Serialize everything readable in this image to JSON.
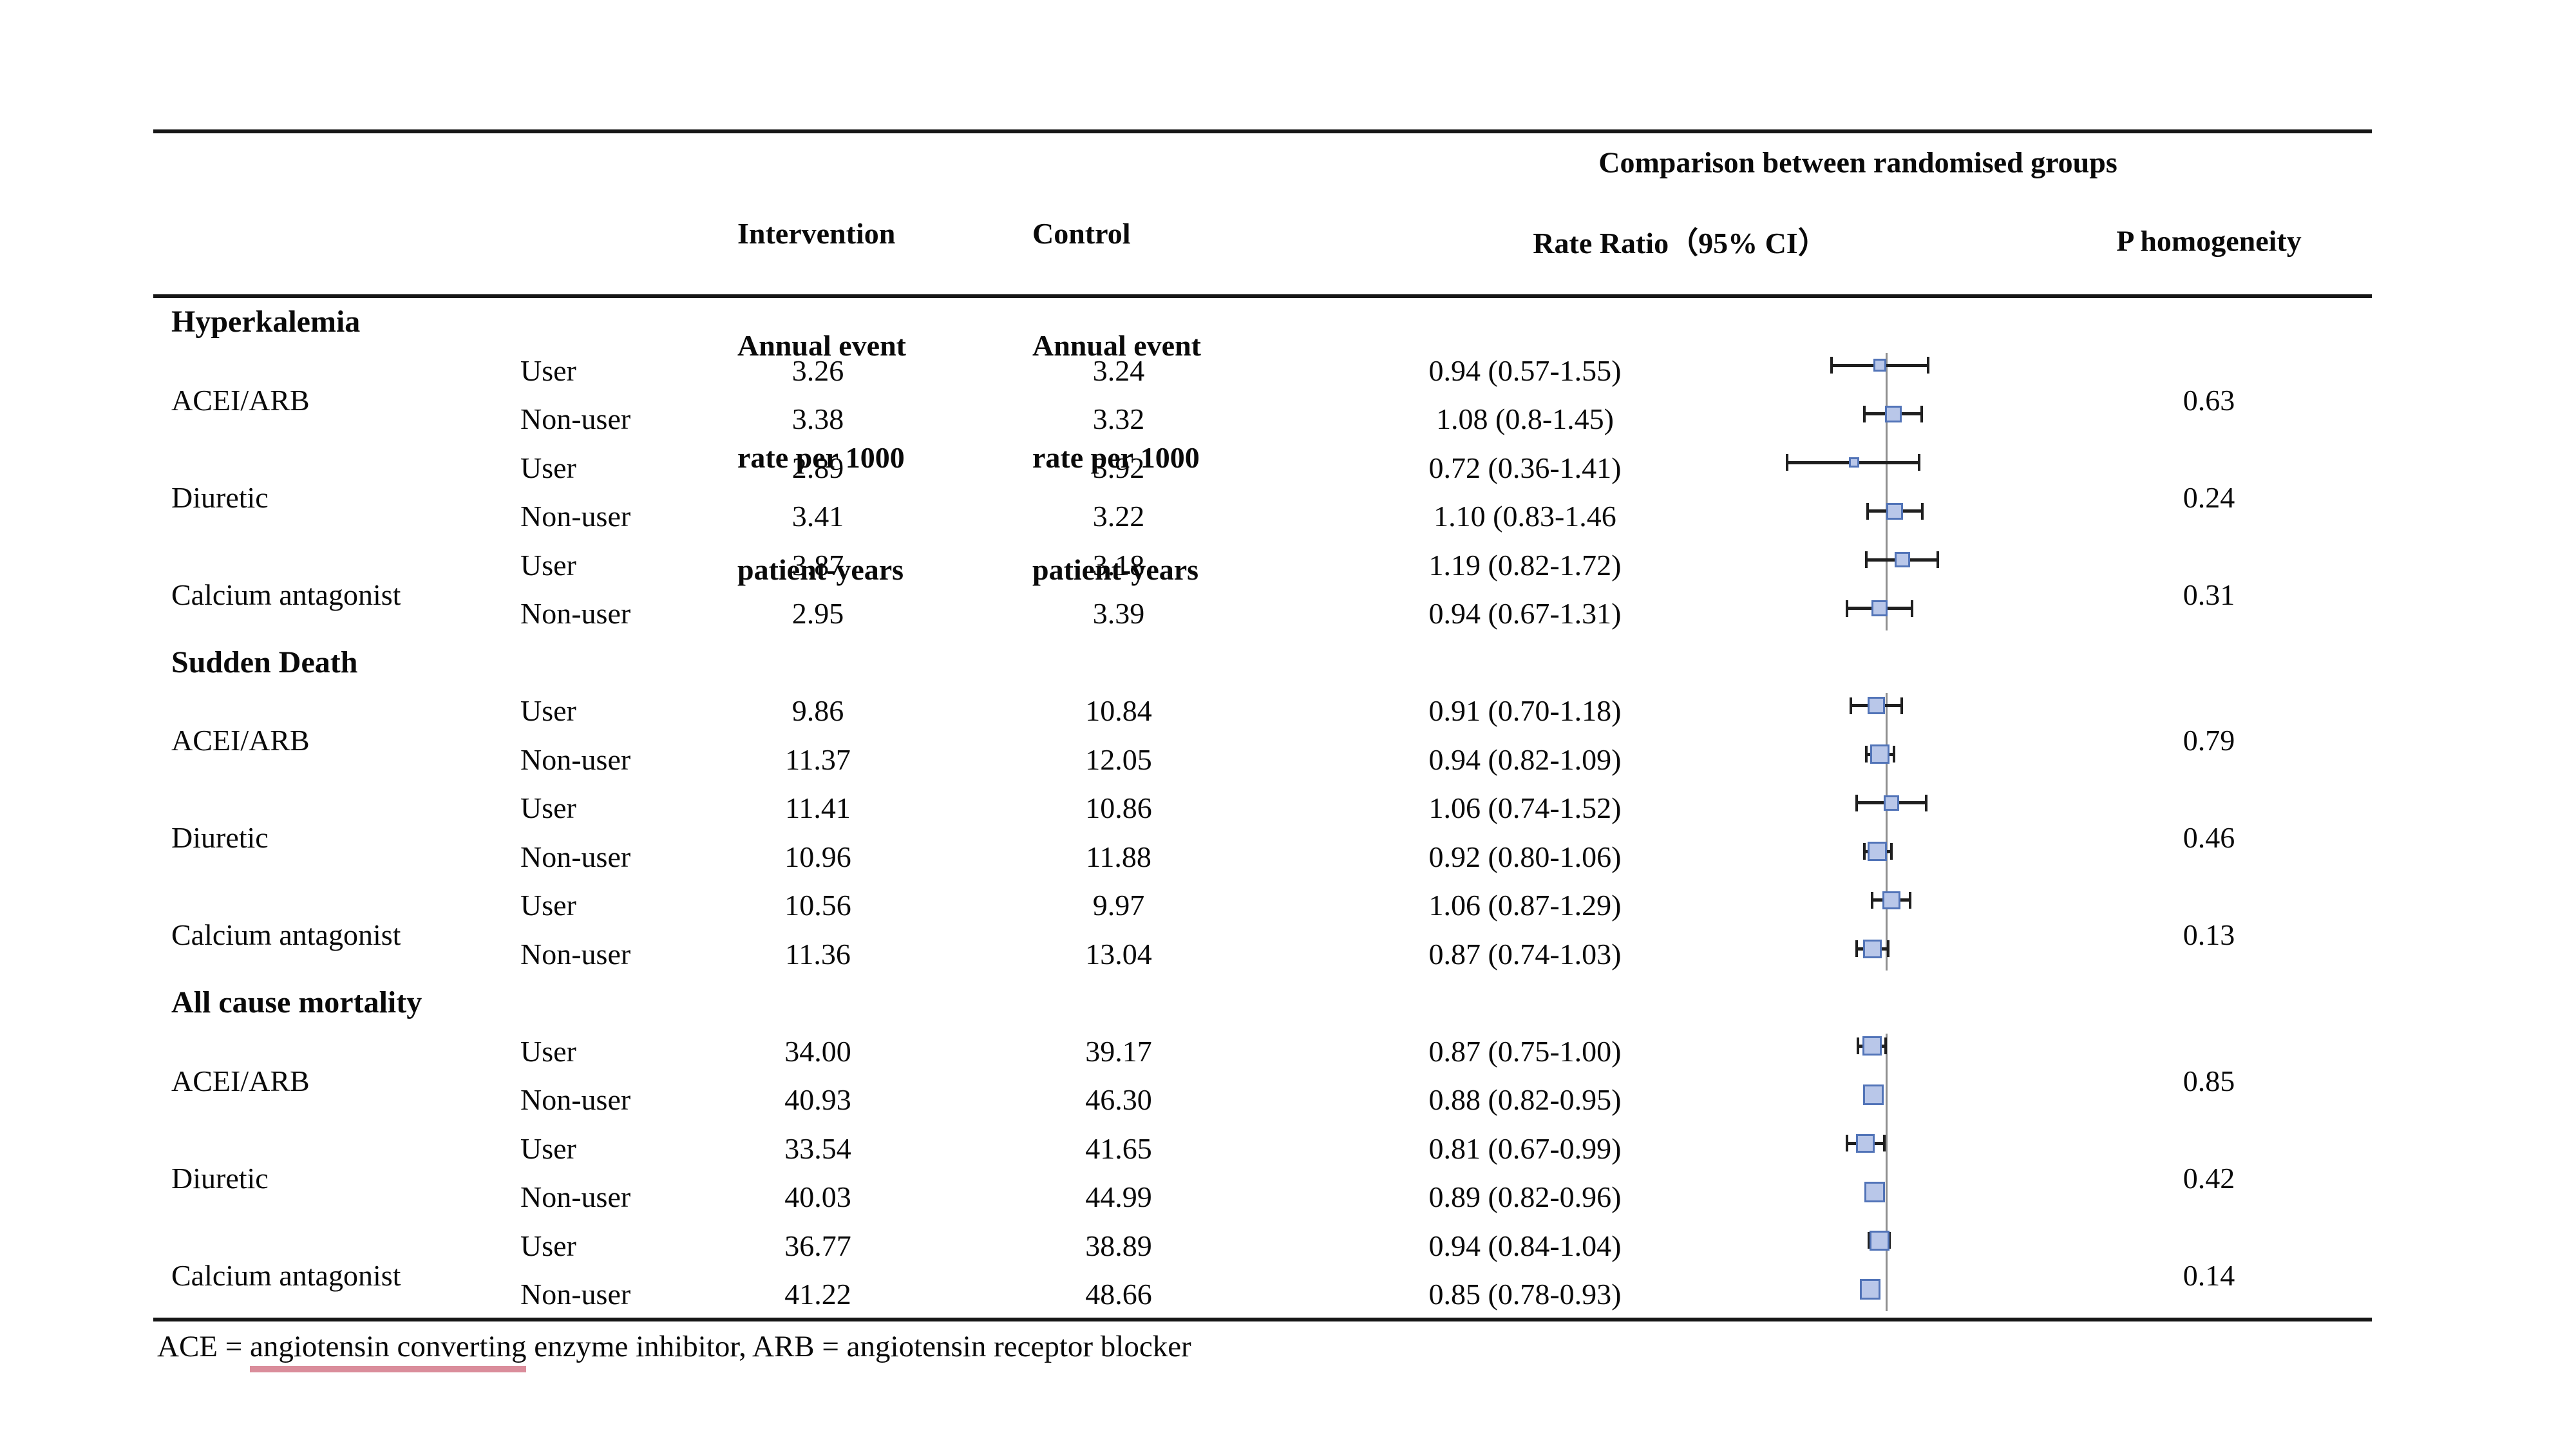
{
  "header": {
    "intervention_lines": [
      "Intervention",
      "Annual event",
      "rate per 1000",
      "patient-years"
    ],
    "control_lines": [
      "Control",
      "Annual event",
      "rate per 1000",
      "patient-years"
    ],
    "comparison_title": "Comparison between randomised groups",
    "rate_ratio_label": "Rate Ratio（95% CI）",
    "p_homogeneity_label": "P homogeneity"
  },
  "footer": {
    "prefix": "ACE = ",
    "underlined": "angiotensin converting",
    "suffix": " enzyme inhibitor, ARB = angiotensin receptor blocker"
  },
  "colors": {
    "marker_fill": "#b9c7e9",
    "marker_border": "#5274b8",
    "whisker": "#1f1f1f",
    "reference_line": "#8f8f8f",
    "rule": "#161616",
    "footnote_underline": "#da8d9b"
  },
  "chart_data": {
    "type": "forest",
    "scale": "log",
    "reference_value": 1.0,
    "x_extent": [
      0.36,
      1.72
    ],
    "sections": [
      {
        "label": "Hyperkalemia",
        "groups": [
          {
            "drug": "ACEI/ARB",
            "p_homogeneity": "0.63",
            "rows": [
              {
                "exposure": "User",
                "intervention": "3.26",
                "control": "3.24",
                "rr_text": "0.94 (0.57-1.55)",
                "est": 0.94,
                "lo": 0.57,
                "hi": 1.55
              },
              {
                "exposure": "Non-user",
                "intervention": "3.38",
                "control": "3.32",
                "rr_text": "1.08 (0.8-1.45)",
                "est": 1.08,
                "lo": 0.8,
                "hi": 1.45
              }
            ]
          },
          {
            "drug": "Diuretic",
            "p_homogeneity": "0.24",
            "rows": [
              {
                "exposure": "User",
                "intervention": "2.89",
                "control": "3.92",
                "rr_text": "0.72 (0.36-1.41)",
                "est": 0.72,
                "lo": 0.36,
                "hi": 1.41
              },
              {
                "exposure": "Non-user",
                "intervention": "3.41",
                "control": "3.22",
                "rr_text": "1.10 (0.83-1.46",
                "est": 1.1,
                "lo": 0.83,
                "hi": 1.46
              }
            ]
          },
          {
            "drug": "Calcium antagonist",
            "p_homogeneity": "0.31",
            "rows": [
              {
                "exposure": "User",
                "intervention": "3.87",
                "control": "3.18",
                "rr_text": "1.19 (0.82-1.72)",
                "est": 1.19,
                "lo": 0.82,
                "hi": 1.72
              },
              {
                "exposure": "Non-user",
                "intervention": "2.95",
                "control": "3.39",
                "rr_text": "0.94 (0.67-1.31)",
                "est": 0.94,
                "lo": 0.67,
                "hi": 1.31
              }
            ]
          }
        ]
      },
      {
        "label": "Sudden Death",
        "groups": [
          {
            "drug": "ACEI/ARB",
            "p_homogeneity": "0.79",
            "rows": [
              {
                "exposure": "User",
                "intervention": "9.86",
                "control": "10.84",
                "rr_text": "0.91 (0.70-1.18)",
                "est": 0.91,
                "lo": 0.7,
                "hi": 1.18
              },
              {
                "exposure": "Non-user",
                "intervention": "11.37",
                "control": "12.05",
                "rr_text": "0.94 (0.82-1.09)",
                "est": 0.94,
                "lo": 0.82,
                "hi": 1.09
              }
            ]
          },
          {
            "drug": "Diuretic",
            "p_homogeneity": "0.46",
            "rows": [
              {
                "exposure": "User",
                "intervention": "11.41",
                "control": "10.86",
                "rr_text": "1.06 (0.74-1.52)",
                "est": 1.06,
                "lo": 0.74,
                "hi": 1.52
              },
              {
                "exposure": "Non-user",
                "intervention": "10.96",
                "control": "11.88",
                "rr_text": "0.92 (0.80-1.06)",
                "est": 0.92,
                "lo": 0.8,
                "hi": 1.06
              }
            ]
          },
          {
            "drug": "Calcium antagonist",
            "p_homogeneity": "0.13",
            "rows": [
              {
                "exposure": "User",
                "intervention": "10.56",
                "control": "9.97",
                "rr_text": "1.06 (0.87-1.29)",
                "est": 1.06,
                "lo": 0.87,
                "hi": 1.29
              },
              {
                "exposure": "Non-user",
                "intervention": "11.36",
                "control": "13.04",
                "rr_text": "0.87 (0.74-1.03)",
                "est": 0.87,
                "lo": 0.74,
                "hi": 1.03
              }
            ]
          }
        ]
      },
      {
        "label": "All cause mortality",
        "groups": [
          {
            "drug": "ACEI/ARB",
            "p_homogeneity": "0.85",
            "rows": [
              {
                "exposure": "User",
                "intervention": "34.00",
                "control": "39.17",
                "rr_text": "0.87 (0.75-1.00)",
                "est": 0.87,
                "lo": 0.75,
                "hi": 1.0
              },
              {
                "exposure": "Non-user",
                "intervention": "40.93",
                "control": "46.30",
                "rr_text": "0.88 (0.82-0.95)",
                "est": 0.88,
                "lo": 0.82,
                "hi": 0.95
              }
            ]
          },
          {
            "drug": "Diuretic",
            "p_homogeneity": "0.42",
            "rows": [
              {
                "exposure": "User",
                "intervention": "33.54",
                "control": "41.65",
                "rr_text": "0.81 (0.67-0.99)",
                "est": 0.81,
                "lo": 0.67,
                "hi": 0.99
              },
              {
                "exposure": "Non-user",
                "intervention": "40.03",
                "control": "44.99",
                "rr_text": "0.89 (0.82-0.96)",
                "est": 0.89,
                "lo": 0.82,
                "hi": 0.96
              }
            ]
          },
          {
            "drug": "Calcium antagonist",
            "p_homogeneity": "0.14",
            "rows": [
              {
                "exposure": "User",
                "intervention": "36.77",
                "control": "38.89",
                "rr_text": "0.94 (0.84-1.04)",
                "est": 0.94,
                "lo": 0.84,
                "hi": 1.04
              },
              {
                "exposure": "Non-user",
                "intervention": "41.22",
                "control": "48.66",
                "rr_text": "0.85 (0.78-0.93)",
                "est": 0.85,
                "lo": 0.78,
                "hi": 0.93
              }
            ]
          }
        ]
      }
    ]
  }
}
